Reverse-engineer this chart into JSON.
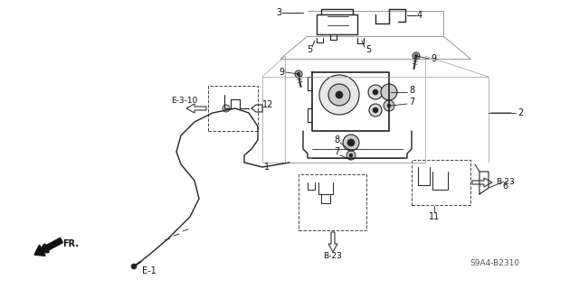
{
  "background_color": "#ffffff",
  "line_color": "#222222",
  "diagram_code": "S9A4-B2310",
  "figsize": [
    6.4,
    3.2
  ],
  "dpi": 100,
  "xlim": [
    0,
    640
  ],
  "ylim": [
    0,
    320
  ]
}
